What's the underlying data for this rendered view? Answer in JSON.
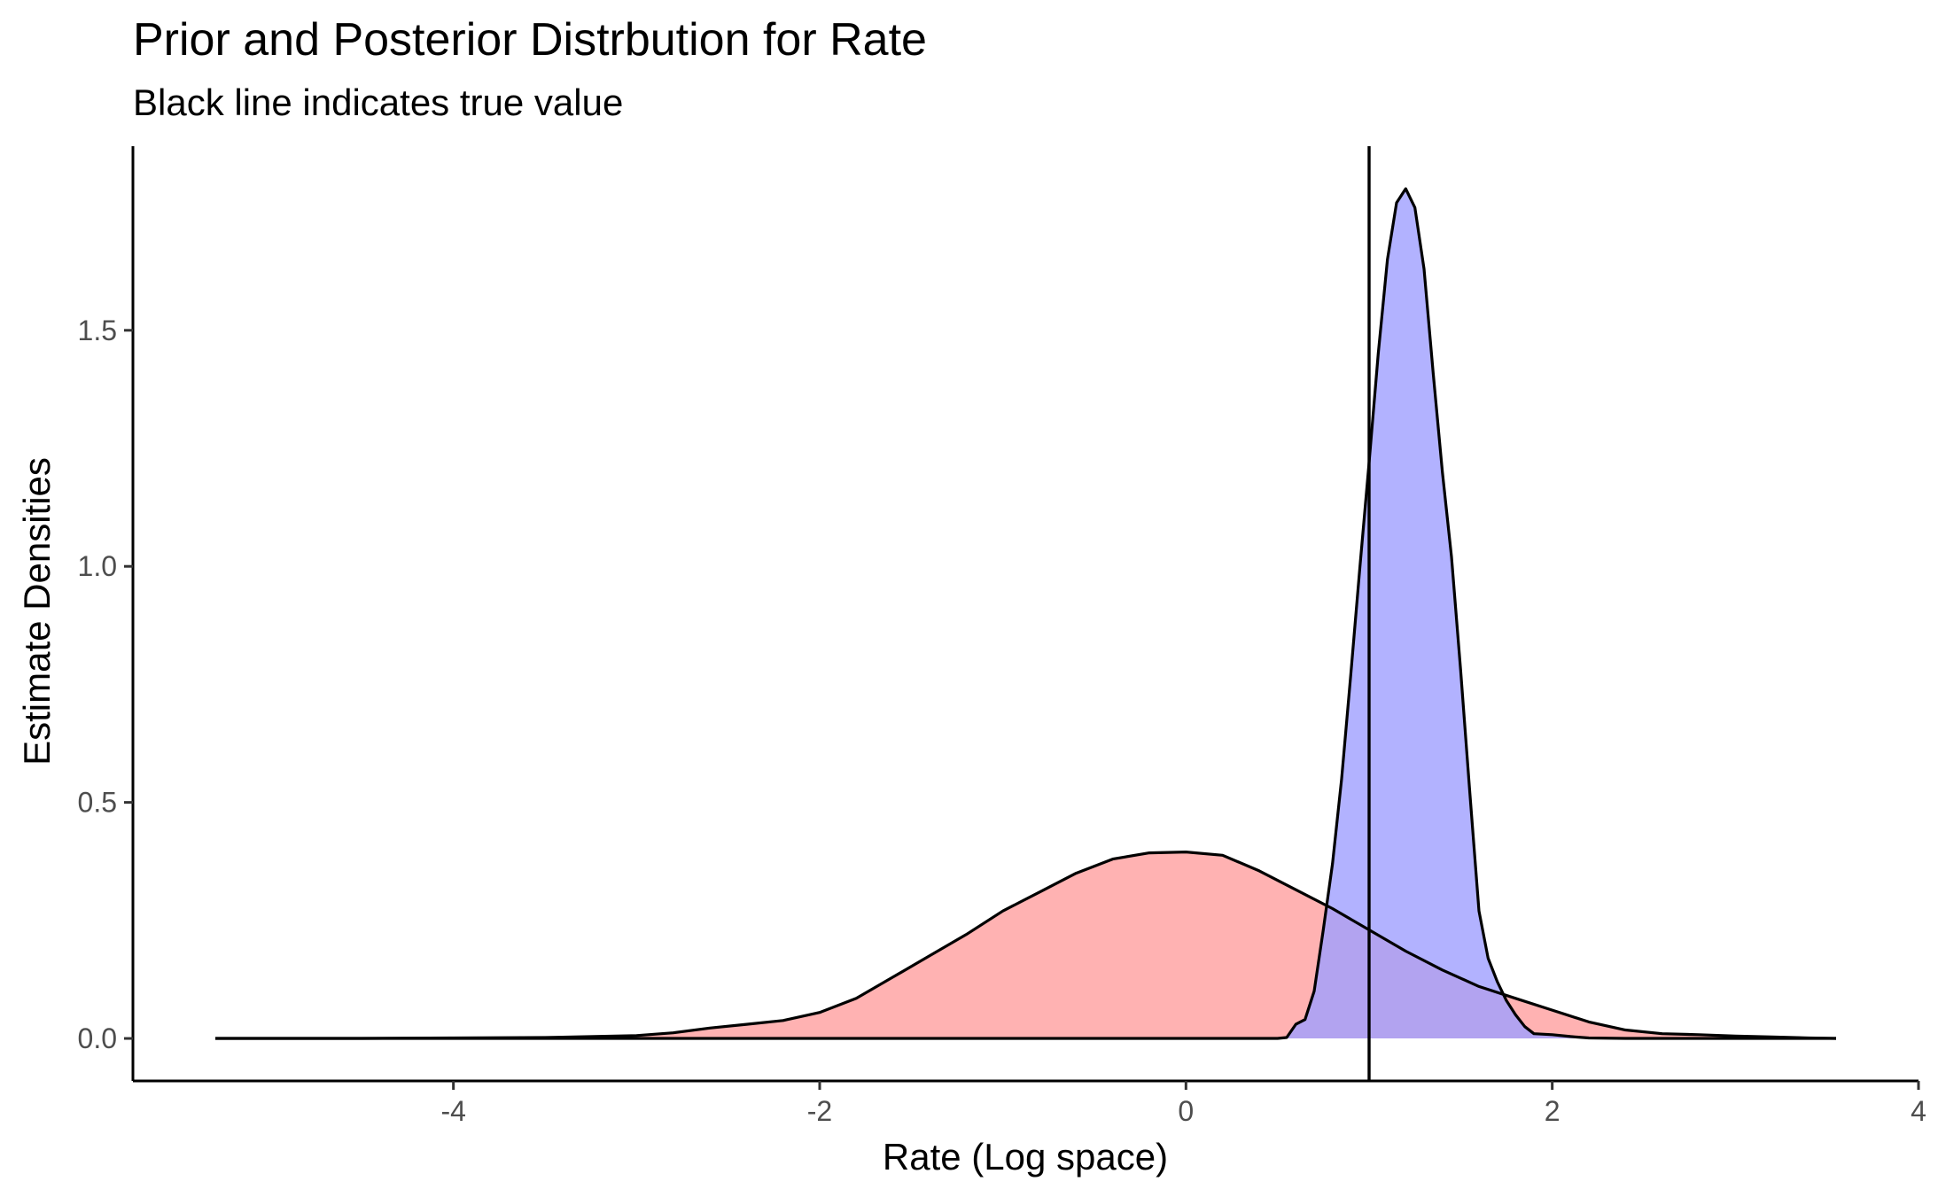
{
  "chart_data": {
    "type": "area",
    "title": "Prior and Posterior Distrbution for Rate",
    "subtitle": "Black line indicates true value",
    "xlabel": "Rate (Log space)",
    "ylabel": "Estimate Densities",
    "xlim": [
      -5.75,
      4
    ],
    "ylim": [
      -0.09,
      1.89
    ],
    "x_ticks": [
      -4,
      -2,
      0,
      2,
      4
    ],
    "x_tick_labels": [
      "-4",
      "-2",
      "0",
      "2",
      "4"
    ],
    "y_ticks": [
      0.0,
      0.5,
      1.0,
      1.5
    ],
    "y_tick_labels": [
      "0.0",
      "0.5",
      "1.0",
      "1.5"
    ],
    "grid": false,
    "reference_line": {
      "x": 1.0,
      "color": "#000000"
    },
    "series": [
      {
        "fill": "#ff9f9f",
        "opacity": 0.8,
        "x": [
          -5.3,
          -4.5,
          -4.0,
          -3.5,
          -3.0,
          -2.8,
          -2.6,
          -2.4,
          -2.2,
          -2.0,
          -1.8,
          -1.6,
          -1.4,
          -1.2,
          -1.0,
          -0.8,
          -0.6,
          -0.4,
          -0.2,
          0.0,
          0.2,
          0.4,
          0.6,
          0.8,
          1.0,
          1.2,
          1.4,
          1.6,
          1.8,
          2.0,
          2.2,
          2.4,
          2.6,
          2.8,
          3.0,
          3.2,
          3.4,
          3.55
        ],
        "values": [
          0.0,
          0.0,
          0.001,
          0.002,
          0.006,
          0.012,
          0.022,
          0.03,
          0.038,
          0.055,
          0.085,
          0.13,
          0.175,
          0.22,
          0.27,
          0.31,
          0.35,
          0.38,
          0.393,
          0.395,
          0.388,
          0.355,
          0.315,
          0.275,
          0.23,
          0.185,
          0.145,
          0.11,
          0.085,
          0.06,
          0.035,
          0.018,
          0.01,
          0.008,
          0.005,
          0.003,
          0.001,
          0.0
        ]
      },
      {
        "fill": "#9f9fff",
        "opacity": 0.8,
        "x": [
          -5.3,
          0.5,
          0.55,
          0.6,
          0.65,
          0.7,
          0.75,
          0.8,
          0.85,
          0.9,
          0.95,
          1.0,
          1.05,
          1.1,
          1.15,
          1.2,
          1.25,
          1.3,
          1.35,
          1.4,
          1.45,
          1.5,
          1.55,
          1.6,
          1.65,
          1.7,
          1.75,
          1.8,
          1.85,
          1.9,
          2.0,
          2.1,
          2.2,
          2.4,
          2.6,
          3.55
        ],
        "values": [
          0.0,
          0.0,
          0.002,
          0.03,
          0.04,
          0.1,
          0.23,
          0.37,
          0.55,
          0.77,
          1.0,
          1.22,
          1.45,
          1.65,
          1.77,
          1.8,
          1.76,
          1.63,
          1.41,
          1.2,
          1.02,
          0.78,
          0.52,
          0.27,
          0.17,
          0.12,
          0.08,
          0.05,
          0.025,
          0.01,
          0.008,
          0.004,
          0.001,
          0.0,
          0.0,
          0.0
        ]
      }
    ]
  }
}
